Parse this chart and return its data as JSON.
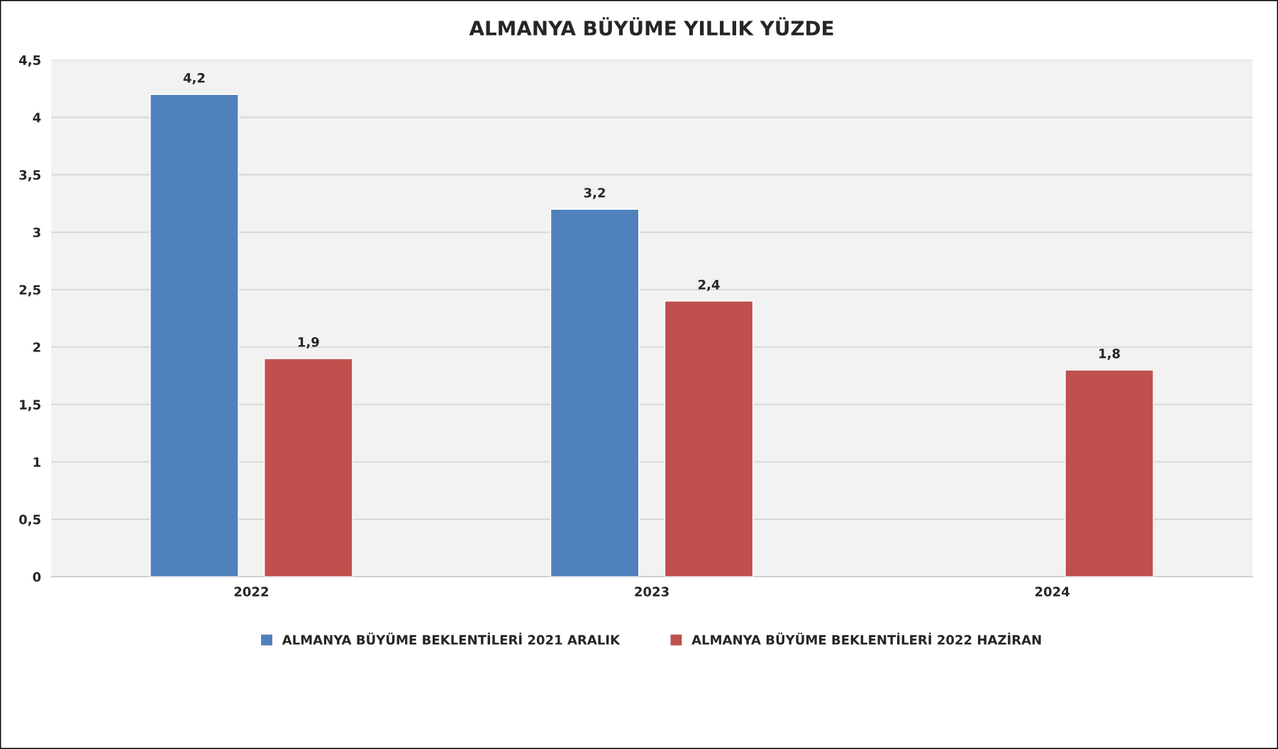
{
  "chart_data": {
    "type": "bar",
    "title": "ALMANYA BÜYÜME YILLIK YÜZDE",
    "categories": [
      "2022",
      "2023",
      "2024"
    ],
    "series": [
      {
        "name": "ALMANYA BÜYÜME BEKLENTİLERİ 2021 ARALIK",
        "color": "#4f81bd",
        "values": [
          4.2,
          3.2,
          null
        ],
        "value_labels": [
          "4,2",
          "3,2",
          null
        ]
      },
      {
        "name": "ALMANYA BÜYÜME BEKLENTİLERİ 2022 HAZİRAN",
        "color": "#c0504d",
        "values": [
          1.9,
          2.4,
          1.8
        ],
        "value_labels": [
          "1,9",
          "2,4",
          "1,8"
        ]
      }
    ],
    "ylim": [
      0,
      4.5
    ],
    "yticks": [
      0,
      {
        "value": 0.5,
        "label": "0,5"
      },
      1,
      {
        "value": 1.5,
        "label": "1,5"
      },
      2,
      {
        "value": 2.5,
        "label": "2,5"
      },
      3,
      {
        "value": 3.5,
        "label": "3,5"
      },
      4,
      {
        "value": 4.5,
        "label": "4,5"
      }
    ],
    "grid": "y",
    "legend": "bottom"
  }
}
